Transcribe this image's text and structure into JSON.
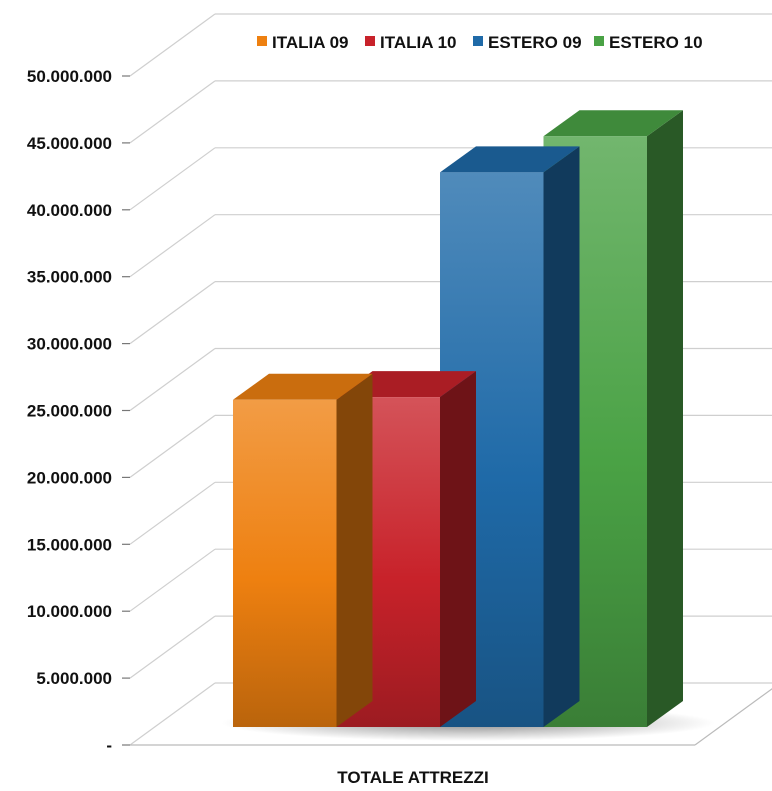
{
  "chart_data": {
    "type": "bar",
    "categories": [
      "TOTALE ATTREZZI"
    ],
    "series": [
      {
        "name": "ITALIA 09",
        "values": [
          25800000
        ],
        "color": "#ee8010"
      },
      {
        "name": "ITALIA 10",
        "values": [
          26000000
        ],
        "color": "#c8222a"
      },
      {
        "name": "ESTERO 09",
        "values": [
          42800000
        ],
        "color": "#1f6aa8"
      },
      {
        "name": "ESTERO 10",
        "values": [
          45500000
        ],
        "color": "#4aa245"
      }
    ],
    "ylim": [
      0,
      50000000
    ],
    "yticks": [
      "-",
      "5.000.000",
      "10.000.000",
      "15.000.000",
      "20.000.000",
      "25.000.000",
      "30.000.000",
      "35.000.000",
      "40.000.000",
      "45.000.000",
      "50.000.000"
    ],
    "grid": true,
    "legend": "top",
    "style": "3d-column"
  }
}
